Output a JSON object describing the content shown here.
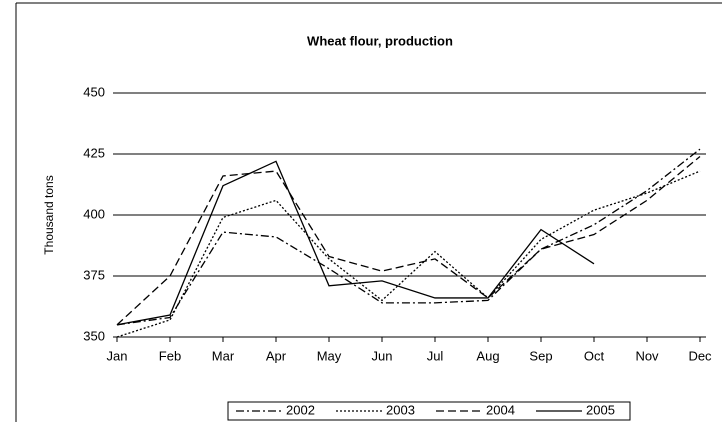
{
  "chart_data": {
    "type": "line",
    "title": "Wheat flour, production",
    "y_label": "Thousand tons",
    "categories": [
      "Jan",
      "Feb",
      "Mar",
      "Apr",
      "May",
      "Jun",
      "Jul",
      "Aug",
      "Sep",
      "Oct",
      "Nov",
      "Dec"
    ],
    "series": [
      {
        "name": "2002",
        "color": "#000000",
        "dash": "8 3 2 3",
        "values": [
          355,
          358,
          393,
          391,
          378,
          364,
          364,
          365,
          386,
          396,
          410,
          427
        ]
      },
      {
        "name": "2003",
        "color": "#000000",
        "dash": "2 2",
        "values": [
          350,
          357,
          399,
          406,
          382,
          365,
          385,
          366,
          390,
          402,
          409,
          418
        ]
      },
      {
        "name": "2004",
        "color": "#000000",
        "dash": "8 4",
        "values": [
          355,
          375,
          416,
          418,
          383,
          377,
          382,
          366,
          386,
          392,
          406,
          424
        ]
      },
      {
        "name": "2005",
        "color": "#000000",
        "dash": "none",
        "values": [
          355,
          359,
          412,
          422,
          371,
          373,
          366,
          366,
          394,
          380,
          null,
          null
        ]
      }
    ],
    "ylim": [
      350,
      450
    ],
    "yticks": [
      350,
      375,
      400,
      425,
      450
    ],
    "grid": true,
    "legend": "bottom"
  }
}
